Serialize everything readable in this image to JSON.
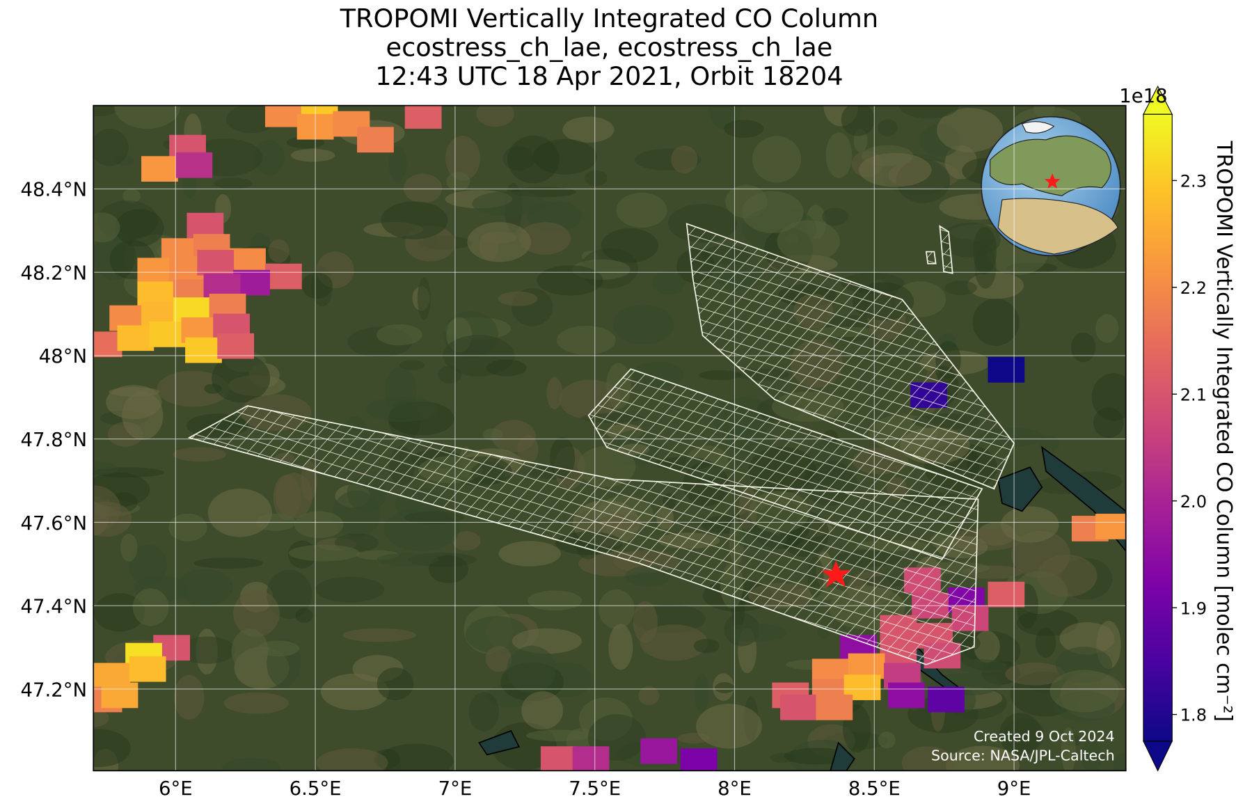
{
  "chart_data": {
    "type": "map",
    "title": [
      "TROPOMI Vertically Integrated CO Column",
      "ecostress_ch_lae, ecostress_ch_lae",
      "12:43 UTC 18 Apr 2021, Orbit 18204"
    ],
    "xlim": [
      5.706,
      9.4
    ],
    "ylim": [
      47.004,
      48.6
    ],
    "xticks": [
      {
        "value": 6,
        "label": "6°E"
      },
      {
        "value": 6.5,
        "label": "6.5°E"
      },
      {
        "value": 7,
        "label": "7°E"
      },
      {
        "value": 7.5,
        "label": "7.5°E"
      },
      {
        "value": 8,
        "label": "8°E"
      },
      {
        "value": 8.5,
        "label": "8.5°E"
      },
      {
        "value": 9,
        "label": "9°E"
      }
    ],
    "yticks": [
      {
        "value": 47.2,
        "label": "47.2°N"
      },
      {
        "value": 47.4,
        "label": "47.4°N"
      },
      {
        "value": 47.6,
        "label": "47.6°N"
      },
      {
        "value": 47.8,
        "label": "47.8°N"
      },
      {
        "value": 48,
        "label": "48°N"
      },
      {
        "value": 48.2,
        "label": "48.2°N"
      },
      {
        "value": 48.4,
        "label": "48.4°N"
      }
    ],
    "grid": true,
    "colormap": "plasma",
    "colorbar": {
      "label": "TROPOMI Vertically Integrated CO Column [molec cm⁻²]",
      "exponent": "1e18",
      "clim": [
        1.775,
        2.362
      ],
      "ticks": [
        1.8,
        1.9,
        {
          "value": 2,
          "label": "2.0"
        },
        2.1,
        2.2,
        2.3
      ]
    },
    "x": [
      6.386,
      6.515,
      6.5,
      6.629,
      6.886,
      6.715,
      6.043,
      5.943,
      6.066,
      6.106,
      6.015,
      6.129,
      6.257,
      6.386,
      5.929,
      6.043,
      6.143,
      6.272,
      5.929,
      6.057,
      6.166,
      5.829,
      5.943,
      6.057,
      6.186,
      5.743,
      5.857,
      5.972,
      6.086,
      6.2,
      6.1,
      6.215,
      5.986,
      5.886,
      5.772,
      5.9,
      5.743,
      5.8,
      8.972,
      8.695,
      9.272,
      9.357,
      8.672,
      8.829,
      8.972,
      8.843,
      8.7,
      8.586,
      8.715,
      8.443,
      8.586,
      8.743,
      8.343,
      8.472,
      8.6,
      8.2,
      8.343,
      8.457,
      8.615,
      8.757,
      8.229,
      8.357,
      7.372,
      7.486,
      7.729,
      7.872
    ],
    "y": [
      48.579,
      48.585,
      48.549,
      48.556,
      48.575,
      48.518,
      48.499,
      48.448,
      48.457,
      48.312,
      48.251,
      48.261,
      48.227,
      48.19,
      48.204,
      48.208,
      48.223,
      48.175,
      48.147,
      48.152,
      48.166,
      48.09,
      48.099,
      48.109,
      48.118,
      48.027,
      48.042,
      48.051,
      48.061,
      48.07,
      48.013,
      48.023,
      47.299,
      47.28,
      47.232,
      47.248,
      47.175,
      47.185,
      47.966,
      47.905,
      47.585,
      47.59,
      47.461,
      47.413,
      47.427,
      47.37,
      47.4,
      47.347,
      47.328,
      47.299,
      47.29,
      47.28,
      47.242,
      47.255,
      47.232,
      47.185,
      47.194,
      47.204,
      47.185,
      47.175,
      47.156,
      47.156,
      47.032,
      47.032,
      47.051,
      47.027
    ],
    "values": [
      2.2,
      2.3,
      2.22,
      2.2,
      2.12,
      2.18,
      2.1,
      2.22,
      2.03,
      2.1,
      2.2,
      2.18,
      2.2,
      2.12,
      2.22,
      2.2,
      2.1,
      1.98,
      2.28,
      2.18,
      2.02,
      2.2,
      2.27,
      2.32,
      2.18,
      2.15,
      2.28,
      2.3,
      2.22,
      2.1,
      2.3,
      2.12,
      2.1,
      2.33,
      2.25,
      2.28,
      2.18,
      2.25,
      1.77,
      1.82,
      2.18,
      2.22,
      2.08,
      1.93,
      2.12,
      2.07,
      2.07,
      2.1,
      2.1,
      1.95,
      2.1,
      2.08,
      2.2,
      2.22,
      2.05,
      2.12,
      2.18,
      2.28,
      1.95,
      1.88,
      2.1,
      2.18,
      2.1,
      2.02,
      1.97,
      1.92
    ],
    "footer": [
      "Created 9 Oct 2024",
      "Source: NASA/JPL-Caltech"
    ]
  }
}
